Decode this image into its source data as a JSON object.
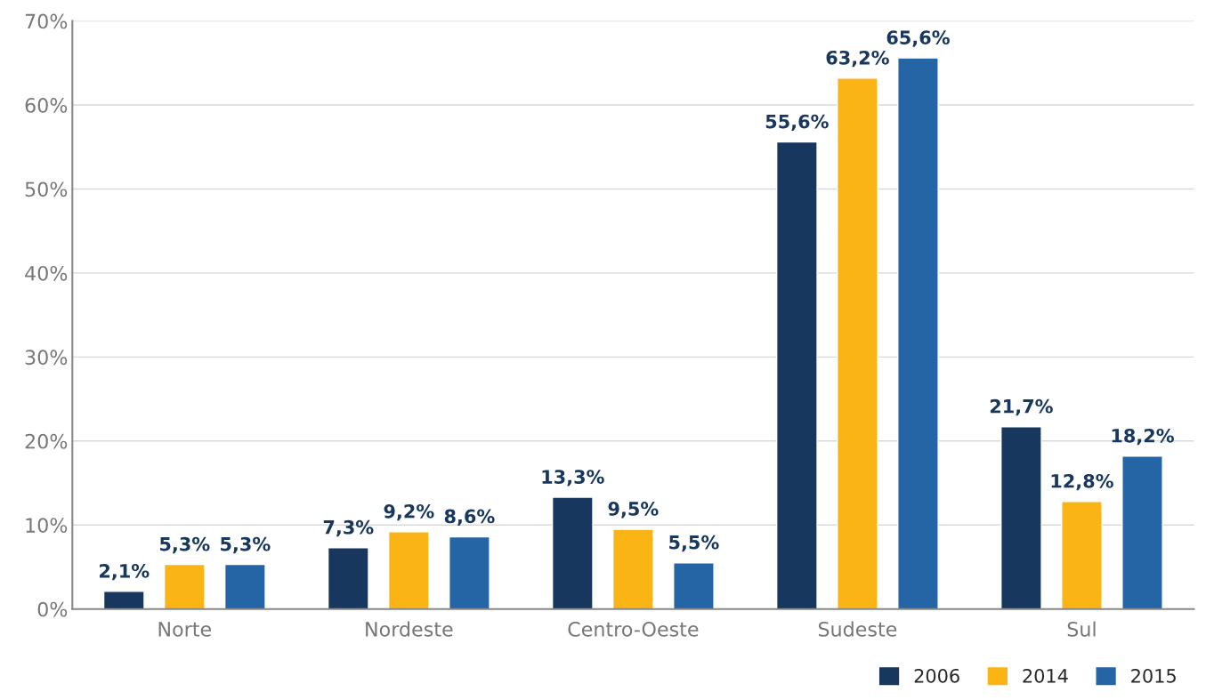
{
  "chart_data": {
    "type": "bar",
    "categories": [
      "Norte",
      "Nordeste",
      "Centro-Oeste",
      "Sudeste",
      "Sul"
    ],
    "series": [
      {
        "name": "2006",
        "color": "#17375e",
        "values": [
          2.1,
          7.3,
          13.3,
          55.6,
          21.7
        ],
        "value_labels": [
          "2,1%",
          "7,3%",
          "13,3%",
          "55,6%",
          "21,7%"
        ]
      },
      {
        "name": "2014",
        "color": "#fbb416",
        "values": [
          5.3,
          9.2,
          9.5,
          63.2,
          12.8
        ],
        "value_labels": [
          "5,3%",
          "9,2%",
          "9,5%",
          "63,2%",
          "12,8%"
        ]
      },
      {
        "name": "2015",
        "color": "#2565a6",
        "values": [
          5.3,
          8.6,
          5.5,
          65.6,
          18.2
        ],
        "value_labels": [
          "5,3%",
          "8,6%",
          "5,5%",
          "65,6%",
          "18,2%"
        ]
      }
    ],
    "ylim": [
      0,
      70
    ],
    "yticks": [
      {
        "value": 0,
        "label": "0%"
      },
      {
        "value": 10,
        "label": "10%"
      },
      {
        "value": 20,
        "label": "20%"
      },
      {
        "value": 30,
        "label": "30%"
      },
      {
        "value": 40,
        "label": "40%"
      },
      {
        "value": 50,
        "label": "50%"
      },
      {
        "value": 60,
        "label": "60%"
      },
      {
        "value": 70,
        "label": "70%"
      }
    ],
    "grid": "y",
    "legend": "bottom right"
  }
}
